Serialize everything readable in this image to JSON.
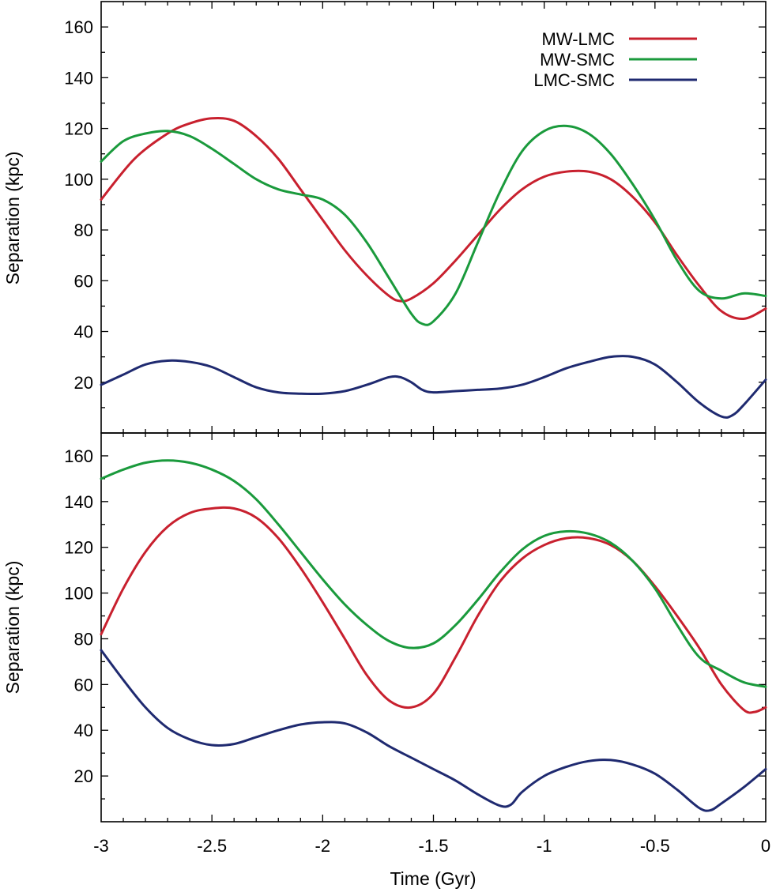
{
  "chart_data": [
    {
      "type": "line",
      "panel": "top",
      "title": "",
      "xlabel": "",
      "ylabel": "Separation (kpc)",
      "xlim": [
        -3,
        0
      ],
      "ylim": [
        0,
        170
      ],
      "yticks": [
        20,
        40,
        60,
        80,
        100,
        120,
        140,
        160
      ],
      "ytick_labels": [
        "20",
        "40",
        "60",
        "80",
        "100",
        "120",
        "140",
        "160"
      ],
      "legend": "top-right",
      "series": [
        {
          "name": "MW-LMC",
          "color": "#c8202e",
          "points": [
            [
              -3.0,
              92
            ],
            [
              -2.85,
              108
            ],
            [
              -2.7,
              118
            ],
            [
              -2.6,
              122
            ],
            [
              -2.5,
              124
            ],
            [
              -2.4,
              123
            ],
            [
              -2.3,
              117
            ],
            [
              -2.2,
              108
            ],
            [
              -2.1,
              96
            ],
            [
              -2.0,
              84
            ],
            [
              -1.9,
              72
            ],
            [
              -1.8,
              62
            ],
            [
              -1.7,
              54
            ],
            [
              -1.65,
              52
            ],
            [
              -1.6,
              53
            ],
            [
              -1.5,
              59
            ],
            [
              -1.4,
              68
            ],
            [
              -1.3,
              78
            ],
            [
              -1.2,
              88
            ],
            [
              -1.1,
              96
            ],
            [
              -1.0,
              101
            ],
            [
              -0.9,
              103
            ],
            [
              -0.8,
              103
            ],
            [
              -0.7,
              100
            ],
            [
              -0.6,
              93
            ],
            [
              -0.5,
              83
            ],
            [
              -0.4,
              70
            ],
            [
              -0.3,
              58
            ],
            [
              -0.2,
              48
            ],
            [
              -0.1,
              45
            ],
            [
              0.0,
              49
            ]
          ]
        },
        {
          "name": "MW-SMC",
          "color": "#1a9a3c",
          "points": [
            [
              -3.0,
              107
            ],
            [
              -2.9,
              115
            ],
            [
              -2.8,
              118
            ],
            [
              -2.7,
              119
            ],
            [
              -2.6,
              117
            ],
            [
              -2.5,
              112
            ],
            [
              -2.4,
              106
            ],
            [
              -2.3,
              100
            ],
            [
              -2.2,
              96
            ],
            [
              -2.1,
              94
            ],
            [
              -2.0,
              92
            ],
            [
              -1.9,
              86
            ],
            [
              -1.8,
              75
            ],
            [
              -1.7,
              61
            ],
            [
              -1.6,
              47
            ],
            [
              -1.55,
              43
            ],
            [
              -1.5,
              44
            ],
            [
              -1.4,
              55
            ],
            [
              -1.3,
              75
            ],
            [
              -1.2,
              95
            ],
            [
              -1.1,
              111
            ],
            [
              -1.0,
              119
            ],
            [
              -0.9,
              121
            ],
            [
              -0.8,
              118
            ],
            [
              -0.7,
              110
            ],
            [
              -0.6,
              98
            ],
            [
              -0.5,
              84
            ],
            [
              -0.4,
              68
            ],
            [
              -0.3,
              56
            ],
            [
              -0.2,
              53
            ],
            [
              -0.1,
              55
            ],
            [
              0.0,
              54
            ]
          ]
        },
        {
          "name": "LMC-SMC",
          "color": "#1f2a70",
          "points": [
            [
              -3.0,
              19
            ],
            [
              -2.9,
              23
            ],
            [
              -2.8,
              27
            ],
            [
              -2.7,
              28.5
            ],
            [
              -2.6,
              28
            ],
            [
              -2.5,
              26
            ],
            [
              -2.4,
              22
            ],
            [
              -2.3,
              18
            ],
            [
              -2.2,
              16
            ],
            [
              -2.1,
              15.5
            ],
            [
              -2.0,
              15.5
            ],
            [
              -1.9,
              16.5
            ],
            [
              -1.8,
              19
            ],
            [
              -1.7,
              22
            ],
            [
              -1.65,
              22
            ],
            [
              -1.6,
              20
            ],
            [
              -1.55,
              17
            ],
            [
              -1.5,
              16
            ],
            [
              -1.4,
              16.5
            ],
            [
              -1.3,
              17
            ],
            [
              -1.2,
              17.5
            ],
            [
              -1.1,
              19
            ],
            [
              -1.0,
              22
            ],
            [
              -0.9,
              25.5
            ],
            [
              -0.8,
              28
            ],
            [
              -0.7,
              30
            ],
            [
              -0.6,
              30
            ],
            [
              -0.5,
              27
            ],
            [
              -0.4,
              20
            ],
            [
              -0.3,
              12
            ],
            [
              -0.2,
              6.5
            ],
            [
              -0.15,
              7
            ],
            [
              -0.1,
              11
            ],
            [
              0.0,
              21
            ]
          ]
        }
      ]
    },
    {
      "type": "line",
      "panel": "bottom",
      "title": "",
      "xlabel": "Time (Gyr)",
      "ylabel": "Separation (kpc)",
      "xlim": [
        -3,
        0
      ],
      "ylim": [
        0,
        170
      ],
      "xticks": [
        -3,
        -2.5,
        -2,
        -1.5,
        -1,
        -0.5,
        0
      ],
      "xtick_labels": [
        "-3",
        "-2.5",
        "-2",
        "-1.5",
        "-1",
        "-0.5",
        "0"
      ],
      "yticks": [
        20,
        40,
        60,
        80,
        100,
        120,
        140,
        160
      ],
      "ytick_labels": [
        "20",
        "40",
        "60",
        "80",
        "100",
        "120",
        "140",
        "160"
      ],
      "series": [
        {
          "name": "MW-LMC",
          "color": "#c8202e",
          "points": [
            [
              -3.0,
              82
            ],
            [
              -2.9,
              102
            ],
            [
              -2.8,
              118
            ],
            [
              -2.7,
              129
            ],
            [
              -2.6,
              135
            ],
            [
              -2.5,
              137
            ],
            [
              -2.4,
              137
            ],
            [
              -2.3,
              133
            ],
            [
              -2.2,
              124
            ],
            [
              -2.1,
              111
            ],
            [
              -2.0,
              96
            ],
            [
              -1.9,
              80
            ],
            [
              -1.8,
              64
            ],
            [
              -1.7,
              53
            ],
            [
              -1.6,
              50
            ],
            [
              -1.5,
              56
            ],
            [
              -1.4,
              72
            ],
            [
              -1.3,
              90
            ],
            [
              -1.2,
              105
            ],
            [
              -1.1,
              115
            ],
            [
              -1.0,
              121
            ],
            [
              -0.9,
              124
            ],
            [
              -0.8,
              124
            ],
            [
              -0.7,
              121
            ],
            [
              -0.6,
              114
            ],
            [
              -0.5,
              103
            ],
            [
              -0.4,
              90
            ],
            [
              -0.3,
              76
            ],
            [
              -0.2,
              60
            ],
            [
              -0.1,
              49
            ],
            [
              -0.05,
              48
            ],
            [
              0.0,
              50
            ]
          ]
        },
        {
          "name": "MW-SMC",
          "color": "#1a9a3c",
          "points": [
            [
              -3.0,
              150
            ],
            [
              -2.9,
              154
            ],
            [
              -2.8,
              157
            ],
            [
              -2.7,
              158
            ],
            [
              -2.6,
              157
            ],
            [
              -2.5,
              154
            ],
            [
              -2.4,
              149
            ],
            [
              -2.3,
              141
            ],
            [
              -2.2,
              130
            ],
            [
              -2.1,
              118
            ],
            [
              -2.0,
              106
            ],
            [
              -1.9,
              95
            ],
            [
              -1.8,
              86
            ],
            [
              -1.7,
              79
            ],
            [
              -1.6,
              76
            ],
            [
              -1.5,
              78
            ],
            [
              -1.4,
              86
            ],
            [
              -1.3,
              97
            ],
            [
              -1.2,
              109
            ],
            [
              -1.1,
              119
            ],
            [
              -1.0,
              125
            ],
            [
              -0.9,
              127
            ],
            [
              -0.8,
              126
            ],
            [
              -0.7,
              122
            ],
            [
              -0.6,
              114
            ],
            [
              -0.5,
              102
            ],
            [
              -0.4,
              86
            ],
            [
              -0.3,
              72
            ],
            [
              -0.2,
              66
            ],
            [
              -0.1,
              61
            ],
            [
              0.0,
              59
            ]
          ]
        },
        {
          "name": "LMC-SMC",
          "color": "#1f2a70",
          "points": [
            [
              -3.0,
              75
            ],
            [
              -2.9,
              62
            ],
            [
              -2.8,
              50
            ],
            [
              -2.7,
              41
            ],
            [
              -2.6,
              36
            ],
            [
              -2.5,
              33.5
            ],
            [
              -2.4,
              34
            ],
            [
              -2.3,
              37
            ],
            [
              -2.2,
              40
            ],
            [
              -2.1,
              42.5
            ],
            [
              -2.0,
              43.5
            ],
            [
              -1.9,
              43
            ],
            [
              -1.8,
              39
            ],
            [
              -1.7,
              33
            ],
            [
              -1.6,
              28
            ],
            [
              -1.5,
              23
            ],
            [
              -1.4,
              18
            ],
            [
              -1.3,
              12
            ],
            [
              -1.2,
              7
            ],
            [
              -1.15,
              7.5
            ],
            [
              -1.1,
              13
            ],
            [
              -1.0,
              20
            ],
            [
              -0.9,
              24
            ],
            [
              -0.8,
              26.5
            ],
            [
              -0.7,
              27
            ],
            [
              -0.6,
              25
            ],
            [
              -0.5,
              21
            ],
            [
              -0.4,
              14
            ],
            [
              -0.3,
              6
            ],
            [
              -0.25,
              5
            ],
            [
              -0.2,
              8
            ],
            [
              -0.1,
              15
            ],
            [
              0.0,
              23
            ]
          ]
        }
      ]
    }
  ]
}
